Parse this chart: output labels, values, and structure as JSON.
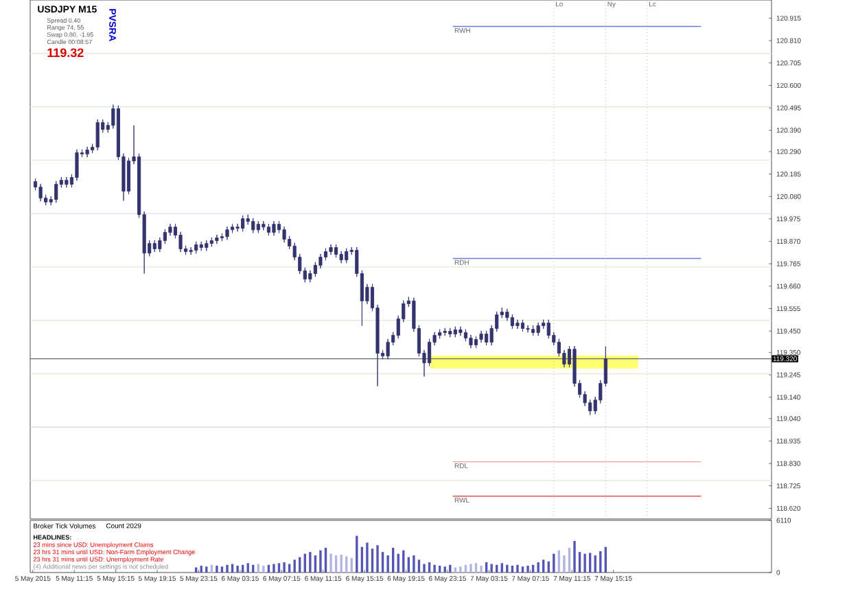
{
  "chart_data": [
    {
      "type": "candlestick",
      "title": "USDJPY  M15",
      "color": "#33336e",
      "annotations": [
        "Spread  0.40",
        "Range  74, 55",
        "Swap  0.80, -1.95",
        "Candle  00:08:57",
        "119.32",
        "PVSRA"
      ],
      "x": [
        "2015-05-05T07:30",
        "2015-05-05T08:00",
        "2015-05-05T08:30",
        "2015-05-05T09:00",
        "2015-05-05T09:30",
        "2015-05-05T10:00",
        "2015-05-05T10:30",
        "2015-05-05T11:00",
        "2015-05-05T11:30",
        "2015-05-05T12:00",
        "2015-05-05T12:30",
        "2015-05-05T13:00",
        "2015-05-05T13:30",
        "2015-05-05T14:00",
        "2015-05-05T14:30",
        "2015-05-05T15:00",
        "2015-05-05T15:30",
        "2015-05-05T16:00",
        "2015-05-05T16:30",
        "2015-05-05T17:00",
        "2015-05-05T17:30",
        "2015-05-05T18:00",
        "2015-05-05T18:30",
        "2015-05-05T19:00",
        "2015-05-05T19:30",
        "2015-05-05T20:00",
        "2015-05-05T20:30",
        "2015-05-05T21:00",
        "2015-05-05T21:30",
        "2015-05-05T22:00",
        "2015-05-05T22:30",
        "2015-05-05T23:00",
        "2015-05-05T23:30",
        "2015-05-06T00:00",
        "2015-05-06T00:30",
        "2015-05-06T01:00",
        "2015-05-06T01:30",
        "2015-05-06T02:00",
        "2015-05-06T02:30",
        "2015-05-06T03:00",
        "2015-05-06T03:30",
        "2015-05-06T04:00",
        "2015-05-06T04:30",
        "2015-05-06T05:00",
        "2015-05-06T05:30",
        "2015-05-06T06:00",
        "2015-05-06T06:30",
        "2015-05-06T07:00",
        "2015-05-06T07:30",
        "2015-05-06T08:00",
        "2015-05-06T08:30",
        "2015-05-06T09:00",
        "2015-05-06T09:30",
        "2015-05-06T10:00",
        "2015-05-06T10:30",
        "2015-05-06T11:00",
        "2015-05-06T11:30",
        "2015-05-06T12:00",
        "2015-05-06T12:30",
        "2015-05-06T13:00",
        "2015-05-06T13:30",
        "2015-05-06T14:00",
        "2015-05-06T14:30",
        "2015-05-06T15:00",
        "2015-05-06T15:30",
        "2015-05-06T16:00",
        "2015-05-06T16:30",
        "2015-05-06T17:00",
        "2015-05-06T17:30",
        "2015-05-06T18:00",
        "2015-05-06T18:30",
        "2015-05-06T19:00",
        "2015-05-06T19:30",
        "2015-05-06T20:00",
        "2015-05-06T20:30",
        "2015-05-06T21:00",
        "2015-05-06T21:30",
        "2015-05-06T22:00",
        "2015-05-06T22:30",
        "2015-05-06T23:00",
        "2015-05-06T23:30",
        "2015-05-07T00:00",
        "2015-05-07T00:30",
        "2015-05-07T01:00",
        "2015-05-07T01:30",
        "2015-05-07T02:00",
        "2015-05-07T02:30",
        "2015-05-07T03:00",
        "2015-05-07T03:30",
        "2015-05-07T04:00",
        "2015-05-07T04:30",
        "2015-05-07T05:00",
        "2015-05-07T05:30",
        "2015-05-07T06:00",
        "2015-05-07T06:30",
        "2015-05-07T07:00",
        "2015-05-07T07:30",
        "2015-05-07T08:00",
        "2015-05-07T08:30",
        "2015-05-07T09:00",
        "2015-05-07T09:30",
        "2015-05-07T10:00",
        "2015-05-07T10:30",
        "2015-05-07T11:00",
        "2015-05-07T11:30",
        "2015-05-07T12:00",
        "2015-05-07T12:30",
        "2015-05-07T13:00",
        "2015-05-07T13:30",
        "2015-05-07T14:00",
        "2015-05-07T14:30"
      ],
      "ohlc": [
        [
          120.15,
          120.165,
          120.109,
          120.124
        ],
        [
          120.124,
          120.139,
          120.058,
          120.073
        ],
        [
          120.073,
          120.088,
          120.039,
          120.054
        ],
        [
          120.054,
          120.081,
          120.039,
          120.066
        ],
        [
          120.066,
          120.152,
          120.051,
          120.137
        ],
        [
          120.137,
          120.171,
          120.122,
          120.156
        ],
        [
          120.156,
          120.171,
          120.122,
          120.137
        ],
        [
          120.137,
          120.184,
          120.122,
          120.169
        ],
        [
          120.169,
          120.3,
          120.154,
          120.285
        ],
        [
          120.285,
          120.3,
          120.264,
          120.279
        ],
        [
          120.279,
          120.313,
          120.264,
          120.298
        ],
        [
          120.298,
          120.326,
          120.283,
          120.311
        ],
        [
          120.311,
          120.441,
          120.296,
          120.426
        ],
        [
          120.426,
          120.441,
          120.379,
          120.394
        ],
        [
          120.394,
          120.428,
          120.379,
          120.413
        ],
        [
          120.413,
          120.51,
          120.398,
          120.491
        ],
        [
          120.491,
          120.506,
          120.251,
          120.266
        ],
        [
          120.266,
          120.281,
          120.06,
          120.105
        ],
        [
          120.105,
          120.261,
          120.09,
          120.246
        ],
        [
          120.246,
          120.413,
          120.231,
          120.266
        ],
        [
          120.266,
          120.281,
          119.98,
          119.995
        ],
        [
          119.995,
          120.01,
          119.719,
          119.815
        ],
        [
          119.815,
          119.875,
          119.8,
          119.86
        ],
        [
          119.86,
          119.875,
          119.82,
          119.835
        ],
        [
          119.835,
          119.888,
          119.82,
          119.873
        ],
        [
          119.873,
          119.927,
          119.858,
          119.912
        ],
        [
          119.912,
          119.952,
          119.897,
          119.937
        ],
        [
          119.937,
          119.952,
          119.884,
          119.899
        ],
        [
          119.899,
          119.914,
          119.82,
          119.835
        ],
        [
          119.835,
          119.85,
          119.807,
          119.822
        ],
        [
          119.822,
          119.843,
          119.807,
          119.828
        ],
        [
          119.828,
          119.869,
          119.813,
          119.854
        ],
        [
          119.854,
          119.869,
          119.826,
          119.841
        ],
        [
          119.841,
          119.875,
          119.826,
          119.86
        ],
        [
          119.86,
          119.888,
          119.845,
          119.873
        ],
        [
          119.873,
          119.901,
          119.858,
          119.886
        ],
        [
          119.886,
          119.907,
          119.871,
          119.892
        ],
        [
          119.892,
          119.939,
          119.877,
          119.924
        ],
        [
          119.924,
          119.952,
          119.909,
          119.937
        ],
        [
          119.937,
          119.952,
          119.916,
          119.931
        ],
        [
          119.931,
          119.991,
          119.916,
          119.976
        ],
        [
          119.976,
          119.995,
          119.948,
          119.963
        ],
        [
          119.963,
          119.978,
          119.909,
          119.924
        ],
        [
          119.924,
          119.965,
          119.909,
          119.95
        ],
        [
          119.95,
          119.965,
          119.922,
          119.937
        ],
        [
          119.937,
          119.952,
          119.897,
          119.912
        ],
        [
          119.912,
          119.965,
          119.897,
          119.95
        ],
        [
          119.95,
          119.965,
          119.909,
          119.924
        ],
        [
          119.924,
          119.939,
          119.865,
          119.88
        ],
        [
          119.88,
          119.895,
          119.833,
          119.848
        ],
        [
          119.848,
          119.863,
          119.781,
          119.796
        ],
        [
          119.796,
          119.811,
          119.717,
          119.732
        ],
        [
          119.732,
          119.747,
          119.678,
          119.693
        ],
        [
          119.693,
          119.734,
          119.678,
          119.719
        ],
        [
          119.719,
          119.773,
          119.704,
          119.758
        ],
        [
          119.758,
          119.811,
          119.743,
          119.796
        ],
        [
          119.796,
          119.837,
          119.781,
          119.822
        ],
        [
          119.822,
          119.856,
          119.807,
          119.841
        ],
        [
          119.841,
          119.856,
          119.794,
          119.809
        ],
        [
          119.809,
          119.824,
          119.768,
          119.783
        ],
        [
          119.783,
          119.837,
          119.768,
          119.822
        ],
        [
          119.822,
          119.843,
          119.807,
          119.828
        ],
        [
          119.828,
          119.843,
          119.704,
          119.719
        ],
        [
          119.719,
          119.734,
          119.475,
          119.591
        ],
        [
          119.591,
          119.67,
          119.576,
          119.655
        ],
        [
          119.655,
          119.67,
          119.543,
          119.558
        ],
        [
          119.558,
          119.573,
          119.192,
          119.346
        ],
        [
          119.346,
          119.361,
          119.318,
          119.333
        ],
        [
          119.333,
          119.413,
          119.318,
          119.398
        ],
        [
          119.398,
          119.445,
          119.383,
          119.43
        ],
        [
          119.43,
          119.522,
          119.415,
          119.507
        ],
        [
          119.507,
          119.593,
          119.492,
          119.578
        ],
        [
          119.578,
          119.61,
          119.563,
          119.591
        ],
        [
          119.591,
          119.606,
          119.447,
          119.462
        ],
        [
          119.462,
          119.477,
          119.331,
          119.346
        ],
        [
          119.346,
          119.361,
          119.237,
          119.301
        ],
        [
          119.301,
          119.413,
          119.286,
          119.398
        ],
        [
          119.398,
          119.445,
          119.383,
          119.43
        ],
        [
          119.43,
          119.458,
          119.415,
          119.443
        ],
        [
          119.443,
          119.464,
          119.428,
          119.449
        ],
        [
          119.449,
          119.464,
          119.421,
          119.436
        ],
        [
          119.436,
          119.471,
          119.421,
          119.456
        ],
        [
          119.456,
          119.471,
          119.428,
          119.443
        ],
        [
          119.443,
          119.458,
          119.402,
          119.417
        ],
        [
          119.417,
          119.432,
          119.37,
          119.385
        ],
        [
          119.385,
          119.426,
          119.37,
          119.411
        ],
        [
          119.411,
          119.451,
          119.396,
          119.436
        ],
        [
          119.436,
          119.451,
          119.383,
          119.398
        ],
        [
          119.398,
          119.477,
          119.383,
          119.462
        ],
        [
          119.462,
          119.541,
          119.447,
          119.526
        ],
        [
          119.526,
          119.56,
          119.511,
          119.539
        ],
        [
          119.539,
          119.554,
          119.498,
          119.513
        ],
        [
          119.513,
          119.528,
          119.46,
          119.475
        ],
        [
          119.475,
          119.503,
          119.46,
          119.488
        ],
        [
          119.488,
          119.503,
          119.447,
          119.462
        ],
        [
          119.462,
          119.477,
          119.443,
          119.458
        ],
        [
          119.458,
          119.477,
          119.428,
          119.443
        ],
        [
          119.443,
          119.49,
          119.428,
          119.475
        ],
        [
          119.475,
          119.503,
          119.46,
          119.488
        ],
        [
          119.488,
          119.503,
          119.415,
          119.43
        ],
        [
          119.43,
          119.445,
          119.383,
          119.398
        ],
        [
          119.398,
          119.413,
          119.331,
          119.346
        ],
        [
          119.346,
          119.361,
          119.28,
          119.295
        ],
        [
          119.295,
          119.38,
          119.28,
          119.365
        ],
        [
          119.365,
          119.38,
          119.19,
          119.205
        ],
        [
          119.205,
          119.22,
          119.138,
          119.153
        ],
        [
          119.153,
          119.168,
          119.099,
          119.114
        ],
        [
          119.114,
          119.129,
          119.057,
          119.076
        ],
        [
          119.076,
          119.142,
          119.061,
          119.127
        ],
        [
          119.127,
          119.22,
          119.112,
          119.205
        ],
        [
          119.205,
          119.378,
          119.19,
          119.32
        ]
      ],
      "xlim": [
        "2015-05-05T07:00",
        "2015-05-08T06:30"
      ],
      "ylim": [
        118.57,
        121.0
      ],
      "yticks": [
        120.915,
        {
          "value": 120.81,
          "label": "120.810"
        },
        120.705,
        {
          "value": 120.6,
          "label": "120.600"
        },
        120.495,
        {
          "value": 120.39,
          "label": "120.390"
        },
        {
          "value": 120.29,
          "label": "120.290"
        },
        120.185,
        {
          "value": 120.08,
          "label": "120.080"
        },
        119.975,
        {
          "value": 119.87,
          "label": "119.870"
        },
        119.765,
        {
          "value": 119.66,
          "label": "119.660"
        },
        119.555,
        {
          "value": 119.45,
          "label": "119.450"
        },
        {
          "value": 119.35,
          "label": "119.350"
        },
        119.245,
        {
          "value": 119.14,
          "label": "119.140"
        },
        {
          "value": 119.04,
          "label": "119.040"
        },
        118.935,
        {
          "value": 118.83,
          "label": "118.830"
        },
        118.725,
        {
          "value": 118.62,
          "label": "118.620"
        }
      ],
      "tick_labels": "y",
      "ref_lines": [
        {
          "axis": "y",
          "value": 120.75,
          "color": "#ece6d8"
        },
        {
          "axis": "y",
          "value": 120.5,
          "color": "#d6eed6"
        },
        {
          "axis": "y",
          "value": 120.25,
          "color": "#ece6d8"
        },
        {
          "axis": "y",
          "value": 120.0,
          "color": "#dcdcf6"
        },
        {
          "axis": "y",
          "value": 119.75,
          "color": "#ece6d8"
        },
        {
          "axis": "y",
          "value": 119.5,
          "color": "#d6eed6"
        },
        {
          "axis": "y",
          "value": 119.25,
          "color": "#ece6d8"
        },
        {
          "axis": "y",
          "value": 119.0,
          "color": "#dcdcf6"
        },
        {
          "axis": "y",
          "value": 118.75,
          "color": "#ece6d8"
        },
        {
          "axis": "y",
          "value": 119.32,
          "label": "119.320",
          "color": "#5a6e78",
          "line_style": "solid"
        },
        {
          "axis": "y",
          "value": 120.876,
          "label": "RWH",
          "color": "#6a7ee0"
        },
        {
          "axis": "y",
          "value": 119.79,
          "label": "RDH",
          "color": "#6a7ee0"
        },
        {
          "axis": "y",
          "value": 118.838,
          "label": "RDL",
          "color": "#f0a0a0"
        },
        {
          "axis": "y",
          "value": 118.677,
          "label": "RWL",
          "color": "#e85050"
        },
        {
          "axis": "x",
          "value": "2015-05-07T09:30",
          "label": "Lo",
          "color": "#b0b0b0",
          "line_style": "dotted"
        },
        {
          "axis": "x",
          "value": "2015-05-07T14:30",
          "label": "Ny",
          "color": "#b0b0b0",
          "line_style": "dotted"
        },
        {
          "axis": "x",
          "value": "2015-05-07T18:30",
          "label": "Lc",
          "color": "#b0b0b0",
          "line_style": "dotted"
        }
      ],
      "bands": [
        {
          "axis": "y",
          "from": 119.275,
          "to": 119.335,
          "color": "#ffff70"
        }
      ]
    },
    {
      "type": "bar",
      "title": "Broker Tick Volumes",
      "annotations": [
        "Count  2029",
        "HEADLINES:",
        "23 mins since USD: Unemployment Claims",
        "23 hrs 31 mins until USD: Non-Farm Employment Change",
        "23 hrs 31 mins until USD: Unemployment Rate",
        "(4) Additional news per settings is not scheduled"
      ],
      "x": [
        "2015-05-05T23:00",
        "2015-05-05T23:30",
        "2015-05-06T00:00",
        "2015-05-06T00:30",
        "2015-05-06T01:00",
        "2015-05-06T01:30",
        "2015-05-06T02:00",
        "2015-05-06T02:30",
        "2015-05-06T03:00",
        "2015-05-06T03:30",
        "2015-05-06T04:00",
        "2015-05-06T04:30",
        "2015-05-06T05:00",
        "2015-05-06T05:30",
        "2015-05-06T06:00",
        "2015-05-06T06:30",
        "2015-05-06T07:00",
        "2015-05-06T07:30",
        "2015-05-06T08:00",
        "2015-05-06T08:30",
        "2015-05-06T09:00",
        "2015-05-06T09:30",
        "2015-05-06T10:00",
        "2015-05-06T10:30",
        "2015-05-06T11:00",
        "2015-05-06T11:30",
        "2015-05-06T12:00",
        "2015-05-06T12:30",
        "2015-05-06T13:00",
        "2015-05-06T13:30",
        "2015-05-06T14:00",
        "2015-05-06T14:30",
        "2015-05-06T15:00",
        "2015-05-06T15:30",
        "2015-05-06T16:00",
        "2015-05-06T16:30",
        "2015-05-06T17:00",
        "2015-05-06T17:30",
        "2015-05-06T18:00",
        "2015-05-06T18:30",
        "2015-05-06T19:00",
        "2015-05-06T19:30",
        "2015-05-06T20:00",
        "2015-05-06T20:30",
        "2015-05-06T21:00",
        "2015-05-06T21:30",
        "2015-05-06T22:00",
        "2015-05-06T22:30",
        "2015-05-06T23:00",
        "2015-05-06T23:30",
        "2015-05-07T00:00",
        "2015-05-07T00:30",
        "2015-05-07T01:00",
        "2015-05-07T01:30",
        "2015-05-07T02:00",
        "2015-05-07T02:30",
        "2015-05-07T03:00",
        "2015-05-07T03:30",
        "2015-05-07T04:00",
        "2015-05-07T04:30",
        "2015-05-07T05:00",
        "2015-05-07T05:30",
        "2015-05-07T06:00",
        "2015-05-07T06:30",
        "2015-05-07T07:00",
        "2015-05-07T07:30",
        "2015-05-07T08:00",
        "2015-05-07T08:30",
        "2015-05-07T09:00",
        "2015-05-07T09:30",
        "2015-05-07T10:00",
        "2015-05-07T10:30",
        "2015-05-07T11:00",
        "2015-05-07T11:30",
        "2015-05-07T12:00",
        "2015-05-07T12:30",
        "2015-05-07T13:00",
        "2015-05-07T13:30",
        "2015-05-07T14:00",
        "2015-05-07T14:30"
      ],
      "values": [
        600,
        800,
        700,
        900,
        800,
        700,
        900,
        1000,
        800,
        900,
        1100,
        900,
        1000,
        800,
        900,
        1000,
        1100,
        1200,
        1000,
        1500,
        1800,
        2200,
        2400,
        2000,
        2600,
        2900,
        2200,
        2000,
        2100,
        1900,
        1700,
        4300,
        3000,
        3500,
        2800,
        3200,
        2400,
        2000,
        2900,
        2200,
        2600,
        1800,
        2000,
        1500,
        1000,
        1200,
        900,
        800,
        700,
        900,
        600,
        700,
        900,
        1000,
        1100,
        800,
        1200,
        1000,
        900,
        1100,
        900,
        800,
        900,
        700,
        800,
        900,
        1200,
        1500,
        1300,
        2200,
        2600,
        2000,
        2900,
        3700,
        2400,
        2200,
        2300,
        2000,
        2500,
        3000
      ],
      "colors": [
        "#5555b5",
        "#5555b5",
        "#5555b5",
        "#b4b4e0",
        "#5555b5",
        "#5555b5",
        "#5555b5",
        "#5555b5",
        "#5555b5",
        "#5555b5",
        "#5555b5",
        "#5555b5",
        "#b4b4e0",
        "#b4b4e0",
        "#5555b5",
        "#5555b5",
        "#5555b5",
        "#5555b5",
        "#5555b5",
        "#5555b5",
        "#5555b5",
        "#5555b5",
        "#5555b5",
        "#5555b5",
        "#5555b5",
        "#5555b5",
        "#b4b4e0",
        "#b4b4e0",
        "#b4b4e0",
        "#b4b4e0",
        "#b4b4e0",
        "#5555b5",
        "#5555b5",
        "#5555b5",
        "#5555b5",
        "#5555b5",
        "#5555b5",
        "#5555b5",
        "#5555b5",
        "#5555b5",
        "#5555b5",
        "#5555b5",
        "#5555b5",
        "#5555b5",
        "#5555b5",
        "#5555b5",
        "#5555b5",
        "#5555b5",
        "#5555b5",
        "#5555b5",
        "#b4b4e0",
        "#b4b4e0",
        "#b4b4e0",
        "#b4b4e0",
        "#b4b4e0",
        "#b4b4e0",
        "#5555b5",
        "#5555b5",
        "#5555b5",
        "#5555b5",
        "#5555b5",
        "#5555b5",
        "#5555b5",
        "#5555b5",
        "#5555b5",
        "#5555b5",
        "#5555b5",
        "#5555b5",
        "#5555b5",
        "#5555b5",
        "#b4b4e0",
        "#b4b4e0",
        "#b4b4e0",
        "#5555b5",
        "#5555b5",
        "#5555b5",
        "#5555b5",
        "#5555b5",
        "#5555b5",
        "#5555b5"
      ],
      "xlim": [
        "2015-05-05T07:00",
        "2015-05-08T06:30"
      ],
      "ylim": [
        0,
        6110
      ],
      "yticks": [
        0,
        6110
      ],
      "xticks": [
        {
          "value": "2015-05-05T07:15",
          "label": "5 May 2015"
        },
        {
          "value": "2015-05-05T11:15",
          "label": "5 May 11:15"
        },
        {
          "value": "2015-05-05T15:15",
          "label": "5 May 15:15"
        },
        {
          "value": "2015-05-05T19:15",
          "label": "5 May 19:15"
        },
        {
          "value": "2015-05-05T23:15",
          "label": "5 May 23:15"
        },
        {
          "value": "2015-05-06T03:15",
          "label": "6 May 03:15"
        },
        {
          "value": "2015-05-06T07:15",
          "label": "6 May 07:15"
        },
        {
          "value": "2015-05-06T11:15",
          "label": "6 May 11:15"
        },
        {
          "value": "2015-05-06T15:15",
          "label": "6 May 15:15"
        },
        {
          "value": "2015-05-06T19:15",
          "label": "6 May 19:15"
        },
        {
          "value": "2015-05-06T23:15",
          "label": "6 May 23:15"
        },
        {
          "value": "2015-05-07T03:15",
          "label": "7 May 03:15"
        },
        {
          "value": "2015-05-07T07:15",
          "label": "7 May 07:15"
        },
        {
          "value": "2015-05-07T11:15",
          "label": "7 May 11:15"
        },
        {
          "value": "2015-05-07T15:15",
          "label": "7 May 15:15"
        }
      ]
    }
  ]
}
